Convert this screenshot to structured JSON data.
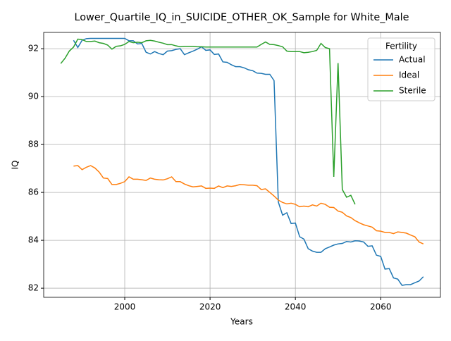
{
  "chart_data": {
    "type": "line",
    "title": "Lower_Quartile_IQ_in_SUICIDE_OTHER_OK_Sample for White_Male",
    "xlabel": "Years",
    "ylabel": "IQ",
    "legend_title": "Fertility",
    "legend": "upper right",
    "grid": true,
    "xlim": [
      1981,
      2074
    ],
    "ylim": [
      81.62,
      92.68
    ],
    "xticks": [
      2000,
      2020,
      2040,
      2060
    ],
    "yticks": [
      82,
      84,
      86,
      88,
      90,
      92
    ],
    "x": [
      1985,
      1986,
      1987,
      1988,
      1989,
      1990,
      1991,
      1992,
      1993,
      1994,
      1995,
      1996,
      1997,
      1998,
      1999,
      2000,
      2001,
      2002,
      2003,
      2004,
      2005,
      2006,
      2007,
      2008,
      2009,
      2010,
      2011,
      2012,
      2013,
      2014,
      2015,
      2016,
      2017,
      2018,
      2019,
      2020,
      2021,
      2022,
      2023,
      2024,
      2025,
      2026,
      2027,
      2028,
      2029,
      2030,
      2031,
      2032,
      2033,
      2034,
      2035,
      2036,
      2037,
      2038,
      2039,
      2040,
      2041,
      2042,
      2043,
      2044,
      2045,
      2046,
      2047,
      2048,
      2049,
      2050,
      2051,
      2052,
      2053,
      2054,
      2055,
      2056,
      2057,
      2058,
      2059,
      2060,
      2061,
      2062,
      2063,
      2064,
      2065,
      2066,
      2067,
      2068,
      2069,
      2070
    ],
    "series": [
      {
        "name": "Actual",
        "color": "#1f77b4",
        "values": [
          null,
          null,
          null,
          92.35,
          92.05,
          92.35,
          92.42,
          92.43,
          92.43,
          92.43,
          92.43,
          92.43,
          92.43,
          92.43,
          92.43,
          92.43,
          92.33,
          92.33,
          92.2,
          92.22,
          91.85,
          91.78,
          91.88,
          91.8,
          91.75,
          91.9,
          91.92,
          91.97,
          92.0,
          91.75,
          91.83,
          91.9,
          91.98,
          92.08,
          91.93,
          91.95,
          91.76,
          91.78,
          91.45,
          91.43,
          91.33,
          91.25,
          91.25,
          91.2,
          91.12,
          91.08,
          90.98,
          90.97,
          90.93,
          90.93,
          90.67,
          85.6,
          85.05,
          85.15,
          84.7,
          84.72,
          84.15,
          84.05,
          83.65,
          83.55,
          83.5,
          83.5,
          83.65,
          83.72,
          83.8,
          83.85,
          83.87,
          83.95,
          83.93,
          83.98,
          83.97,
          83.93,
          83.75,
          83.77,
          83.38,
          83.33,
          82.8,
          82.82,
          82.43,
          82.38,
          82.12,
          82.15,
          82.15,
          82.23,
          82.3,
          82.48
        ]
      },
      {
        "name": "Ideal",
        "color": "#ff7f0e",
        "values": [
          null,
          null,
          null,
          87.1,
          87.12,
          86.95,
          87.05,
          87.12,
          87.02,
          86.85,
          86.6,
          86.58,
          86.33,
          86.33,
          86.38,
          86.45,
          86.65,
          86.55,
          86.55,
          86.53,
          86.5,
          86.6,
          86.55,
          86.53,
          86.52,
          86.57,
          86.65,
          86.45,
          86.45,
          86.35,
          86.28,
          86.23,
          86.25,
          86.27,
          86.17,
          86.18,
          86.17,
          86.27,
          86.2,
          86.27,
          86.25,
          86.28,
          86.33,
          86.32,
          86.3,
          86.3,
          86.28,
          86.12,
          86.15,
          86.0,
          85.85,
          85.68,
          85.58,
          85.52,
          85.55,
          85.5,
          85.4,
          85.43,
          85.4,
          85.48,
          85.43,
          85.55,
          85.5,
          85.38,
          85.37,
          85.22,
          85.17,
          85.02,
          84.95,
          84.82,
          84.73,
          84.65,
          84.6,
          84.55,
          84.4,
          84.38,
          84.33,
          84.33,
          84.28,
          84.35,
          84.33,
          84.3,
          84.22,
          84.15,
          83.93,
          83.85
        ]
      },
      {
        "name": "Sterile",
        "color": "#2ca02c",
        "values": [
          91.38,
          91.6,
          91.9,
          92.07,
          92.4,
          92.38,
          92.3,
          92.3,
          92.32,
          92.25,
          92.22,
          92.15,
          91.98,
          92.1,
          92.12,
          92.18,
          92.3,
          92.25,
          92.27,
          92.25,
          92.33,
          92.35,
          92.32,
          92.27,
          92.23,
          92.17,
          92.17,
          92.12,
          92.08,
          92.1,
          92.1,
          92.1,
          92.08,
          92.08,
          92.07,
          92.07,
          92.07,
          92.07,
          92.07,
          92.07,
          92.07,
          92.07,
          92.07,
          92.07,
          92.07,
          92.07,
          92.07,
          92.18,
          92.28,
          92.18,
          92.17,
          92.13,
          92.08,
          91.9,
          91.88,
          91.88,
          91.88,
          91.83,
          91.85,
          91.88,
          91.93,
          92.22,
          92.05,
          92.0,
          86.65,
          91.4,
          86.12,
          85.8,
          85.88,
          85.5,
          null,
          null,
          null,
          null,
          null,
          null,
          null,
          null,
          null,
          null,
          null,
          null,
          null,
          null,
          null,
          null
        ]
      }
    ]
  }
}
